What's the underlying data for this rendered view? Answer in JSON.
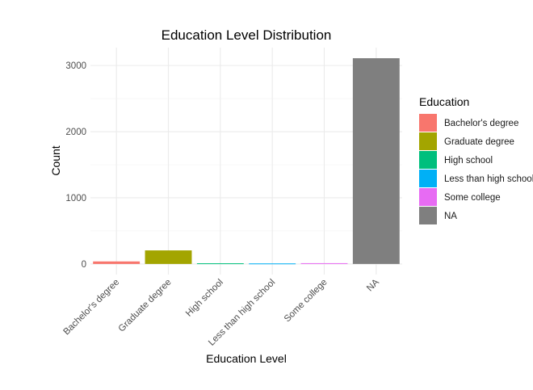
{
  "chart_data": {
    "type": "bar",
    "title": "Education Level Distribution",
    "xlabel": "Education Level",
    "ylabel": "Count",
    "categories": [
      "Bachelor's degree",
      "Graduate degree",
      "High school",
      "Less than high school",
      "Some college",
      "NA"
    ],
    "values": [
      38,
      205,
      10,
      8,
      12,
      3110
    ],
    "colors": [
      "#F8766D",
      "#A3A500",
      "#00BF7D",
      "#00B0F6",
      "#E76BF3",
      "#7F7F7F"
    ],
    "ylim": [
      -160,
      3270
    ],
    "yticks": [
      0,
      1000,
      2000,
      3000
    ],
    "ytick_labels": [
      "0",
      "1000",
      "2000",
      "3000"
    ],
    "grid": true,
    "legend": {
      "title": "Education",
      "position": "right",
      "entries": [
        "Bachelor's degree",
        "Graduate degree",
        "High school",
        "Less than high school",
        "Some college",
        "NA"
      ]
    }
  }
}
